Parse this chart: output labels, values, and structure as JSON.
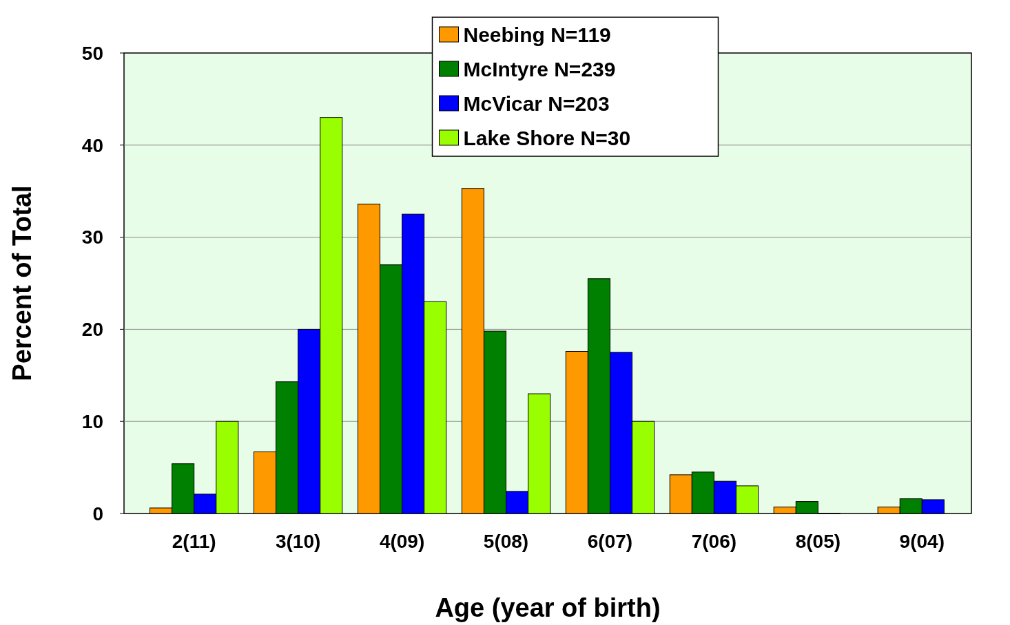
{
  "chart_data": {
    "type": "bar",
    "xlabel": "Age (year of birth)",
    "ylabel": "Percent of Total",
    "categories": [
      "2(11)",
      "3(10)",
      "4(09)",
      "5(08)",
      "6(07)",
      "7(06)",
      "8(05)",
      "9(04)"
    ],
    "series": [
      {
        "name": "Neebing N=119",
        "color": "#ff9900",
        "values": [
          0.6,
          6.7,
          33.6,
          35.3,
          17.6,
          4.2,
          0.7,
          0.7
        ]
      },
      {
        "name": "McIntyre N=239",
        "color": "#008000",
        "values": [
          5.4,
          14.3,
          27,
          19.8,
          25.5,
          4.5,
          1.3,
          1.6
        ]
      },
      {
        "name": "McVicar N=203",
        "color": "#0000ff",
        "values": [
          2.1,
          20,
          32.5,
          2.4,
          17.5,
          3.5,
          0,
          1.5
        ]
      },
      {
        "name": "Lake Shore N=30",
        "color": "#99ff00",
        "values": [
          10,
          43,
          23,
          13,
          10,
          3,
          null,
          null
        ]
      }
    ],
    "ylim": [
      0,
      50
    ],
    "yticks": [
      0,
      10,
      20,
      30,
      40,
      50
    ],
    "grid": "y",
    "legend": "top"
  }
}
